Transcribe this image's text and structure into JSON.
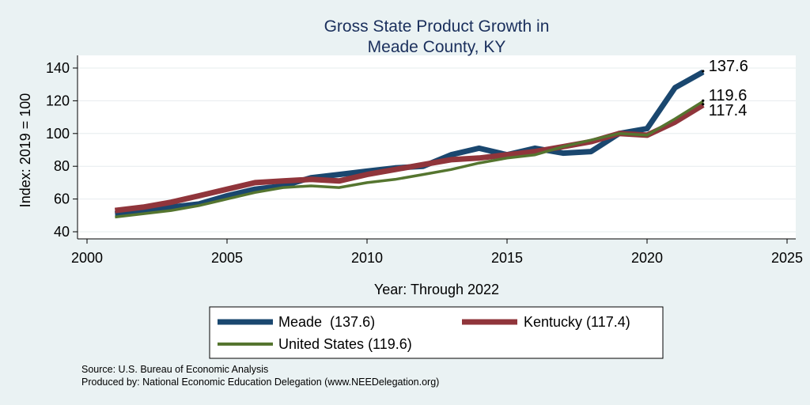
{
  "chart_data": {
    "type": "line",
    "title": [
      "Gross State Product Growth in",
      "Meade County, KY"
    ],
    "xlabel": "Year: Through 2022",
    "ylabel": "Index: 2019 = 100",
    "xlim": [
      2000,
      2025
    ],
    "ylim": [
      40,
      140
    ],
    "xticks": [
      2000,
      2005,
      2010,
      2015,
      2020,
      2025
    ],
    "yticks": [
      40,
      60,
      80,
      100,
      120,
      140
    ],
    "grid": true,
    "x": [
      2001,
      2002,
      2003,
      2004,
      2005,
      2006,
      2007,
      2008,
      2009,
      2010,
      2011,
      2012,
      2013,
      2014,
      2015,
      2016,
      2017,
      2018,
      2019,
      2020,
      2021,
      2022
    ],
    "series": [
      {
        "name": "Meade",
        "legend_label": "Meade  (137.6)",
        "end_label": "137.6",
        "color": "#1a476f",
        "values": [
          51,
          53,
          55,
          57,
          62,
          66,
          68,
          73,
          75,
          77,
          79,
          80,
          87,
          91,
          87,
          91,
          88,
          89,
          100,
          103,
          128,
          137.6
        ]
      },
      {
        "name": "Kentucky",
        "legend_label": "Kentucky (117.4)",
        "end_label": "117.4",
        "color": "#90353b",
        "values": [
          53,
          55,
          58,
          62,
          66,
          70,
          71,
          72,
          71,
          75,
          78,
          81,
          84,
          85,
          87,
          89,
          92,
          95,
          100,
          99,
          107,
          117.4
        ]
      },
      {
        "name": "United States",
        "legend_label": "United States (119.6)",
        "end_label": "119.6",
        "color": "#55752f",
        "values": [
          49,
          51,
          53,
          56,
          60,
          64,
          67,
          68,
          67,
          70,
          72,
          75,
          78,
          82,
          85,
          87,
          92,
          96,
          100,
          99,
          109,
          119.6
        ]
      }
    ],
    "notes": [
      "Source: U.S. Bureau of Economic Analysis",
      "Produced by: National Economic Education Delegation (www.NEEDelegation.org)"
    ]
  }
}
